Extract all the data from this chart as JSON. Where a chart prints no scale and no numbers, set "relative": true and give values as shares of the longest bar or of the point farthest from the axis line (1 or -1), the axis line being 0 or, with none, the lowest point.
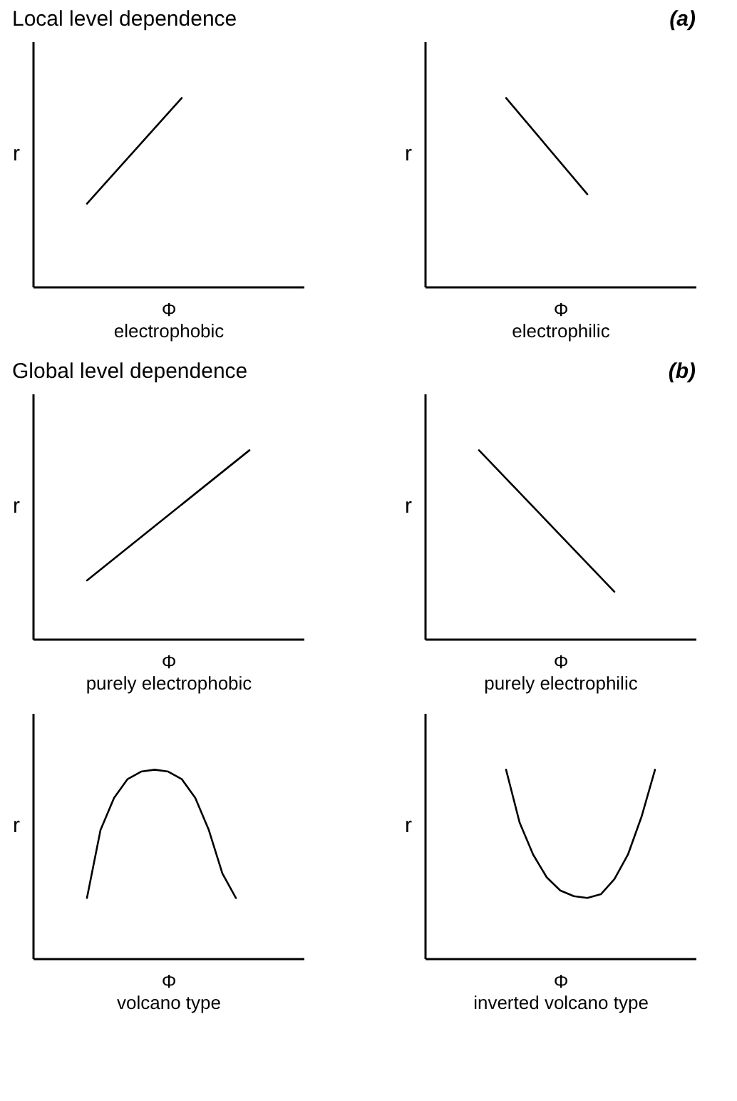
{
  "chart_data": [
    {
      "type": "line",
      "title": "Local level dependence",
      "xlabel": "Φ",
      "ylabel": "r",
      "annotations": [
        "electrophobic"
      ],
      "relative": true,
      "color": "#000000",
      "categories": [
        null,
        null,
        null,
        null,
        null,
        null,
        null,
        null,
        null,
        null,
        null,
        null,
        null,
        null,
        null,
        null,
        null,
        null,
        null,
        null,
        null
      ],
      "values": [
        null,
        null,
        null,
        null,
        0.44,
        null,
        null,
        null,
        null,
        null,
        null,
        1,
        null,
        null,
        null,
        null,
        null,
        null,
        null,
        null,
        null
      ]
    },
    {
      "type": "line",
      "title": "(a)",
      "xlabel": "Φ",
      "ylabel": "r",
      "annotations": [
        "electrophilic"
      ],
      "relative": true,
      "color": "#000000",
      "categories": [
        null,
        null,
        null,
        null,
        null,
        null,
        null,
        null,
        null,
        null,
        null,
        null,
        null,
        null,
        null,
        null,
        null,
        null,
        null,
        null,
        null
      ],
      "values": [
        null,
        null,
        null,
        null,
        null,
        null,
        1,
        null,
        null,
        null,
        null,
        null,
        0.49,
        null,
        null,
        null,
        null,
        null,
        null,
        null,
        null
      ]
    },
    {
      "type": "line",
      "title": "Global level dependence",
      "xlabel": "Φ",
      "ylabel": "r",
      "annotations": [
        "purely electrophobic"
      ],
      "relative": true,
      "color": "#000000",
      "categories": [
        null,
        null,
        null,
        null,
        null,
        null,
        null,
        null,
        null,
        null,
        null,
        null,
        null,
        null,
        null,
        null,
        null,
        null,
        null,
        null,
        null
      ],
      "values": [
        null,
        null,
        null,
        null,
        0.31,
        null,
        null,
        null,
        null,
        null,
        null,
        null,
        null,
        null,
        null,
        null,
        1,
        null,
        null,
        null,
        null
      ]
    },
    {
      "type": "line",
      "title": "(b)",
      "xlabel": "Φ",
      "ylabel": "r",
      "annotations": [
        "purely electrophilic"
      ],
      "relative": true,
      "color": "#000000",
      "categories": [
        null,
        null,
        null,
        null,
        null,
        null,
        null,
        null,
        null,
        null,
        null,
        null,
        null,
        null,
        null,
        null,
        null,
        null,
        null,
        null,
        null
      ],
      "values": [
        null,
        null,
        null,
        null,
        1,
        null,
        null,
        null,
        null,
        null,
        null,
        null,
        null,
        null,
        0.25,
        null,
        null,
        null,
        null,
        null,
        null
      ]
    },
    {
      "type": "line",
      "xlabel": "Φ",
      "ylabel": "r",
      "annotations": [
        "volcano type"
      ],
      "relative": true,
      "color": "#000000",
      "categories": [
        null,
        null,
        null,
        null,
        null,
        null,
        null,
        null,
        null,
        null,
        null,
        null,
        null,
        null,
        null,
        null,
        null,
        null,
        null,
        null,
        null
      ],
      "values": [
        null,
        null,
        null,
        null,
        0.32,
        0.68,
        0.85,
        0.95,
        0.99,
        1,
        0.99,
        0.95,
        0.85,
        0.68,
        0.45,
        0.32,
        null,
        null,
        null,
        null,
        null
      ]
    },
    {
      "type": "line",
      "xlabel": "Φ",
      "ylabel": "r",
      "annotations": [
        "inverted volcano type"
      ],
      "relative": true,
      "color": "#000000",
      "categories": [
        null,
        null,
        null,
        null,
        null,
        null,
        null,
        null,
        null,
        null,
        null,
        null,
        null,
        null,
        null,
        null,
        null,
        null,
        null,
        null,
        null
      ],
      "values": [
        null,
        null,
        null,
        null,
        null,
        null,
        1,
        0.72,
        0.55,
        0.43,
        0.36,
        0.33,
        0.32,
        0.34,
        0.42,
        0.55,
        0.75,
        1,
        null,
        null,
        null
      ]
    }
  ]
}
